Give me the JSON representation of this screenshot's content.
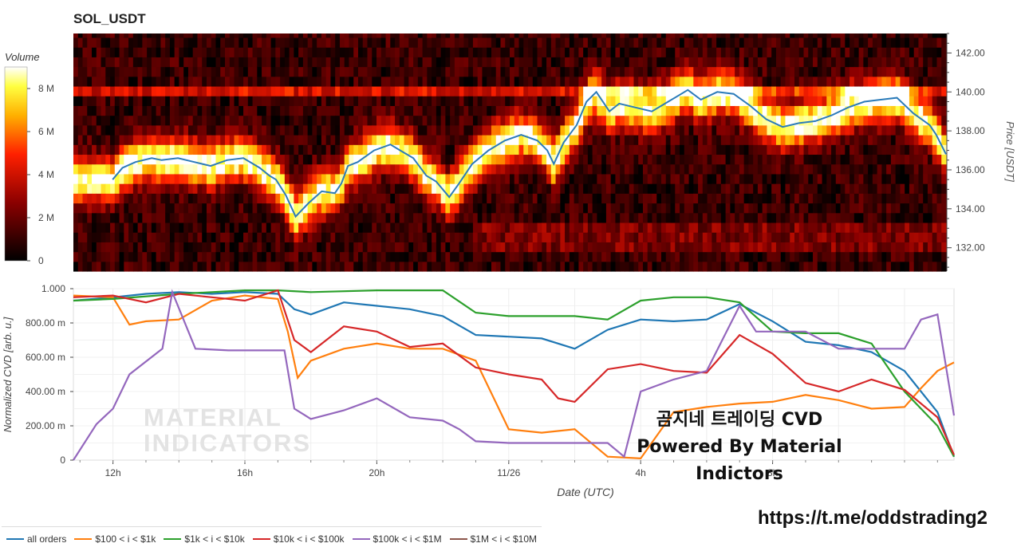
{
  "title": "SOL_USDT",
  "watermark": {
    "line1": "MATERIAL",
    "line2": "INDICATORS"
  },
  "cvd_title": {
    "line1": "곰지네 트레이딩 CVD",
    "line2": "Powered By Material Indictors"
  },
  "url": "https://t.me/oddstrading2",
  "colorbar": {
    "label": "Volume",
    "ticks": [
      "0",
      "2 M",
      "4 M",
      "6 M",
      "8 M"
    ],
    "range": [
      0,
      9
    ]
  },
  "legend": [
    {
      "name": "all orders",
      "color": "#1f77b4"
    },
    {
      "name": "$100 < i < $1k",
      "color": "#ff7f0e"
    },
    {
      "name": "$1k < i < $10k",
      "color": "#2ca02c"
    },
    {
      "name": "$10k < i < $100k",
      "color": "#d62728"
    },
    {
      "name": "$100k < i < $1M",
      "color": "#9467bd"
    },
    {
      "name": "$1M < i < $10M",
      "color": "#8c564b"
    }
  ],
  "chart_data": [
    {
      "type": "heatmap",
      "title": "SOL_USDT",
      "ylabel": "Price [USDT]",
      "ylim": [
        130.8,
        143.0
      ],
      "yticks": [
        "132.00",
        "134.00",
        "136.00",
        "138.00",
        "140.00",
        "142.00"
      ],
      "zlabel": "Volume",
      "zrange": [
        0,
        9
      ],
      "price_series": {
        "name": "price",
        "color": "#2b7bb9",
        "x_hours": [
          0,
          0.3,
          0.7,
          1.2,
          1.5,
          2.0,
          2.5,
          3.0,
          3.5,
          4.0,
          4.5,
          4.8,
          5.0,
          5.3,
          5.6,
          6.0,
          6.4,
          6.8,
          7.0,
          7.2,
          7.5,
          8.0,
          8.5,
          8.8,
          9.2,
          9.6,
          9.9,
          10.3,
          10.6,
          11.0,
          11.5,
          12.0,
          12.5,
          13.0,
          13.3,
          13.5,
          13.8,
          14.2,
          14.5,
          14.8,
          15.2,
          15.5,
          16.0,
          16.5,
          17.0,
          17.3,
          17.6,
          18.0,
          18.5,
          19.0,
          19.5,
          20.0,
          20.5,
          21.0,
          21.5,
          22.0,
          22.5,
          23.0,
          23.5,
          24.0,
          24.5,
          25.0,
          25.2,
          25.5
        ],
        "y": [
          135.5,
          136.1,
          136.4,
          136.6,
          136.5,
          136.6,
          136.4,
          136.2,
          136.5,
          136.6,
          136.1,
          135.7,
          135.5,
          134.7,
          133.6,
          134.3,
          134.9,
          134.8,
          135.3,
          136.2,
          136.4,
          137.0,
          137.3,
          137.0,
          136.6,
          135.7,
          135.4,
          134.6,
          135.3,
          136.3,
          137.0,
          137.5,
          137.8,
          137.5,
          137.0,
          136.3,
          137.4,
          138.3,
          139.5,
          140.0,
          139.0,
          139.4,
          139.2,
          139.0,
          139.5,
          139.8,
          140.1,
          139.6,
          140.0,
          139.9,
          139.3,
          138.6,
          138.2,
          138.4,
          138.5,
          138.8,
          139.2,
          139.5,
          139.6,
          139.7,
          138.9,
          138.3,
          137.8,
          136.8
        ]
      }
    },
    {
      "type": "line",
      "title": "곰지네 트레이딩 CVD",
      "xlabel": "Date (UTC)",
      "ylabel": "Normalized CVD [arb. u.]",
      "x_unit": "hours from 12h on 11/25",
      "x_ticks": [
        "12h",
        "16h",
        "20h",
        "11/26",
        "4h",
        "8h"
      ],
      "xlim": [
        -1.2,
        25.5
      ],
      "ylim": [
        0,
        1.0
      ],
      "y_ticks": [
        "0",
        "200.00 m",
        "400.00 m",
        "600.00 m",
        "800.00 m",
        "1.000"
      ],
      "series": [
        {
          "name": "all orders",
          "color": "#1f77b4",
          "x": [
            -1.2,
            0,
            1.0,
            2.0,
            3.0,
            4.0,
            5.0,
            5.5,
            6.0,
            7.0,
            8.0,
            9.0,
            10.0,
            11.0,
            12.0,
            13.0,
            14.0,
            15.0,
            16.0,
            17.0,
            18.0,
            19.0,
            20.0,
            21.0,
            22.0,
            23.0,
            24.0,
            25.0,
            25.5
          ],
          "y": [
            0.93,
            0.95,
            0.97,
            0.98,
            0.97,
            0.98,
            0.97,
            0.88,
            0.85,
            0.92,
            0.9,
            0.88,
            0.84,
            0.73,
            0.72,
            0.71,
            0.65,
            0.76,
            0.82,
            0.81,
            0.82,
            0.91,
            0.81,
            0.69,
            0.67,
            0.63,
            0.52,
            0.28,
            0.02
          ]
        },
        {
          "name": "$100 < i < $1k",
          "color": "#ff7f0e",
          "x": [
            -1.2,
            0,
            0.5,
            1.0,
            2.0,
            3.0,
            4.0,
            5.0,
            5.3,
            5.6,
            6.0,
            7.0,
            8.0,
            9.0,
            10.0,
            11.0,
            12.0,
            13.0,
            14.0,
            15.0,
            16.0,
            17.0,
            18.0,
            19.0,
            20.0,
            21.0,
            22.0,
            23.0,
            24.0,
            24.5,
            25.0,
            25.5
          ],
          "y": [
            0.96,
            0.95,
            0.79,
            0.81,
            0.82,
            0.93,
            0.96,
            0.94,
            0.75,
            0.48,
            0.58,
            0.65,
            0.68,
            0.65,
            0.65,
            0.58,
            0.18,
            0.16,
            0.18,
            0.02,
            0.01,
            0.28,
            0.31,
            0.33,
            0.34,
            0.38,
            0.35,
            0.3,
            0.31,
            0.42,
            0.52,
            0.57
          ]
        },
        {
          "name": "$1k < i < $10k",
          "color": "#2ca02c",
          "x": [
            -1.2,
            0,
            2.0,
            4.0,
            5.0,
            6.0,
            8.0,
            10.0,
            11.0,
            12.0,
            14.0,
            15.0,
            16.0,
            17.0,
            18.0,
            19.0,
            20.0,
            21.0,
            22.0,
            23.0,
            24.0,
            25.0,
            25.5
          ],
          "y": [
            0.93,
            0.94,
            0.97,
            0.99,
            0.99,
            0.98,
            0.99,
            0.99,
            0.86,
            0.84,
            0.84,
            0.82,
            0.93,
            0.95,
            0.95,
            0.92,
            0.75,
            0.74,
            0.74,
            0.68,
            0.4,
            0.2,
            0.02
          ]
        },
        {
          "name": "$10k < i < $100k",
          "color": "#d62728",
          "x": [
            -1.2,
            0,
            1.0,
            2.0,
            3.0,
            4.0,
            5.0,
            5.5,
            6.0,
            7.0,
            8.0,
            9.0,
            10.0,
            11.0,
            12.0,
            13.0,
            13.5,
            14.0,
            15.0,
            16.0,
            17.0,
            18.0,
            19.0,
            20.0,
            21.0,
            22.0,
            23.0,
            24.0,
            25.0,
            25.5
          ],
          "y": [
            0.95,
            0.96,
            0.92,
            0.97,
            0.95,
            0.93,
            0.99,
            0.7,
            0.63,
            0.78,
            0.75,
            0.66,
            0.68,
            0.54,
            0.5,
            0.47,
            0.36,
            0.34,
            0.53,
            0.56,
            0.52,
            0.51,
            0.73,
            0.62,
            0.45,
            0.4,
            0.47,
            0.41,
            0.25,
            0.03
          ]
        },
        {
          "name": "$100k < i < $1M",
          "color": "#9467bd",
          "x": [
            -1.2,
            -0.5,
            0,
            0.5,
            1.5,
            1.8,
            2.5,
            3.5,
            4.5,
            5.2,
            5.5,
            6.0,
            7.0,
            8.0,
            9.0,
            10.0,
            10.5,
            11.0,
            12.0,
            13.0,
            14.0,
            15.0,
            15.5,
            16.0,
            17.0,
            18.0,
            19.0,
            19.5,
            20.0,
            21.0,
            22.0,
            23.0,
            24.0,
            24.5,
            25.0,
            25.5
          ],
          "y": [
            0.0,
            0.21,
            0.3,
            0.5,
            0.65,
            0.98,
            0.65,
            0.64,
            0.64,
            0.64,
            0.3,
            0.24,
            0.29,
            0.36,
            0.25,
            0.23,
            0.18,
            0.11,
            0.1,
            0.1,
            0.1,
            0.1,
            0.02,
            0.4,
            0.47,
            0.52,
            0.9,
            0.75,
            0.75,
            0.75,
            0.65,
            0.65,
            0.65,
            0.82,
            0.85,
            0.26
          ]
        }
      ]
    }
  ]
}
